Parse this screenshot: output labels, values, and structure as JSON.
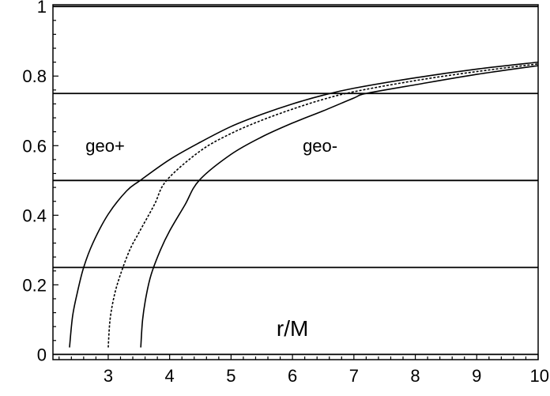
{
  "chart_data": {
    "type": "line",
    "title": "",
    "xlabel": "",
    "ylabel": "",
    "xlim": [
      2.1,
      10
    ],
    "ylim": [
      -0.015,
      1.005
    ],
    "x_ticks": [
      3,
      4,
      5,
      6,
      7,
      8,
      9,
      10
    ],
    "x_tick_labels": [
      "3",
      "4",
      "5",
      "6",
      "7",
      "8",
      "9",
      "10"
    ],
    "y_ticks": [
      0,
      0.2,
      0.4,
      0.6,
      0.8,
      1
    ],
    "y_tick_labels": [
      "0",
      "0.2",
      "0.4",
      "0.6",
      "0.8",
      "1"
    ],
    "horizontal_lines": [
      0,
      0.25,
      0.5,
      0.75,
      1
    ],
    "grid": false,
    "series": [
      {
        "style": "solid",
        "x": [
          2.37,
          2.42,
          2.5,
          2.6,
          2.75,
          3,
          3.3,
          3.52,
          4,
          4.5,
          5,
          5.5,
          6,
          6.5,
          7,
          8,
          9,
          10
        ],
        "y": [
          0.02,
          0.11,
          0.18,
          0.25,
          0.32,
          0.403,
          0.47,
          0.5,
          0.56,
          0.61,
          0.655,
          0.69,
          0.72,
          0.745,
          0.765,
          0.795,
          0.82,
          0.84
        ]
      },
      {
        "style": "dashed",
        "x": [
          3,
          3.03,
          3.1,
          3.2,
          3.35,
          3.5,
          3.75,
          3.95,
          4.5,
          5,
          5.5,
          6,
          6.5,
          7,
          8,
          9,
          10
        ],
        "y": [
          0.02,
          0.1,
          0.17,
          0.23,
          0.3,
          0.35,
          0.43,
          0.5,
          0.585,
          0.635,
          0.673,
          0.705,
          0.733,
          0.755,
          0.787,
          0.813,
          0.835
        ]
      },
      {
        "style": "solid",
        "x": [
          3.53,
          3.56,
          3.62,
          3.7,
          3.85,
          4,
          4.25,
          4.48,
          5,
          5.5,
          6,
          6.5,
          7,
          7.2,
          8,
          9,
          10
        ],
        "y": [
          0.02,
          0.1,
          0.17,
          0.23,
          0.3,
          0.355,
          0.43,
          0.5,
          0.575,
          0.625,
          0.665,
          0.7,
          0.737,
          0.75,
          0.775,
          0.805,
          0.83
        ]
      }
    ],
    "annotations": [
      {
        "text": "geo+",
        "x": 2.95,
        "y": 0.6,
        "size": 22
      },
      {
        "text": "geo-",
        "x": 6.45,
        "y": 0.6,
        "size": 22
      },
      {
        "text": "r/M",
        "x": 6.0,
        "y": 0.075,
        "size": 28
      }
    ]
  }
}
